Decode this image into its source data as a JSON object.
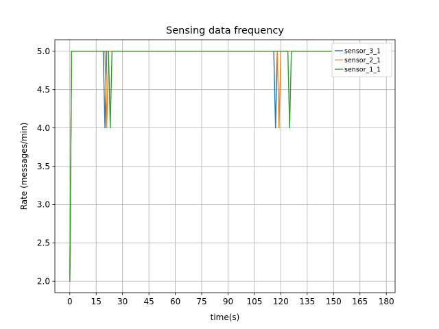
{
  "chart_data": {
    "type": "line",
    "title": "Sensing data frequency",
    "xlabel": "time(s)",
    "ylabel": "Rate (messages/min)",
    "xlim": [
      -8.5,
      185
    ],
    "ylim": [
      1.85,
      5.15
    ],
    "xticks": [
      0,
      15,
      30,
      45,
      60,
      75,
      90,
      105,
      120,
      135,
      150,
      165,
      180
    ],
    "yticks": [
      2.0,
      2.5,
      3.0,
      3.5,
      4.0,
      4.5,
      5.0
    ],
    "ytick_labels": [
      "2.0",
      "2.5",
      "3.0",
      "3.5",
      "4.0",
      "4.5",
      "5.0"
    ],
    "grid": true,
    "legend_position": "top-right",
    "series": [
      {
        "name": "sensor_3_1",
        "color": "#1f77b4",
        "x": [
          0,
          1,
          19,
          20,
          21,
          116,
          117,
          118,
          150
        ],
        "y": [
          2.0,
          5.0,
          5.0,
          4.0,
          5.0,
          5.0,
          4.0,
          5.0,
          5.0
        ]
      },
      {
        "name": "sensor_2_1",
        "color": "#ff7f0e",
        "x": [
          0,
          1,
          20,
          21,
          22,
          118,
          119,
          120,
          150
        ],
        "y": [
          2.0,
          5.0,
          5.0,
          4.0,
          5.0,
          5.0,
          4.0,
          5.0,
          5.0
        ]
      },
      {
        "name": "sensor_1_1",
        "color": "#2ca02c",
        "x": [
          0,
          1,
          22,
          23,
          24,
          124,
          125,
          126,
          150
        ],
        "y": [
          2.0,
          5.0,
          5.0,
          4.0,
          5.0,
          5.0,
          4.0,
          5.0,
          5.0
        ]
      }
    ]
  }
}
